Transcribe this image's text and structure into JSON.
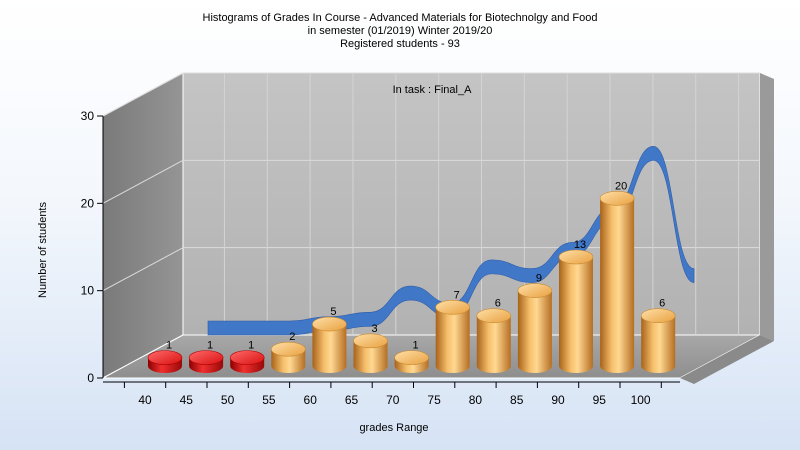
{
  "chart_data": {
    "type": "bar",
    "title_lines": [
      "Histograms of Grades  In Course - Advanced Materials for Biotechnolgy and Food",
      "in semester  (01/2019) Winter 2019/20",
      "Registered students - 93"
    ],
    "annotation": "In task : Final_A",
    "xlabel": "grades Range",
    "ylabel": "Number of students",
    "ylim": [
      0,
      30
    ],
    "y_ticks": [
      "0",
      "10",
      "20",
      "30"
    ],
    "categories": [
      "40",
      "45",
      "50",
      "55",
      "60",
      "65",
      "70",
      "75",
      "80",
      "85",
      "90",
      "95",
      "100"
    ],
    "values": [
      1,
      1,
      1,
      2,
      5,
      3,
      1,
      7,
      6,
      9,
      13,
      20,
      6
    ],
    "data_labels": [
      "1",
      "1",
      "1",
      "2",
      "5",
      "3",
      "1",
      "7",
      "6",
      "9",
      "13",
      "20",
      "6"
    ],
    "bar_colors": [
      "#e01818",
      "#e01818",
      "#e01818",
      "#e8a23c",
      "#e8a23c",
      "#e8a23c",
      "#e8a23c",
      "#e8a23c",
      "#e8a23c",
      "#e8a23c",
      "#e8a23c",
      "#e8a23c",
      "#e8a23c"
    ],
    "curve_values": [
      0,
      0,
      0,
      0.5,
      1,
      4,
      2,
      7,
      6,
      9,
      13,
      20,
      6
    ],
    "curve_color": "#3a74c8",
    "grid": true
  }
}
